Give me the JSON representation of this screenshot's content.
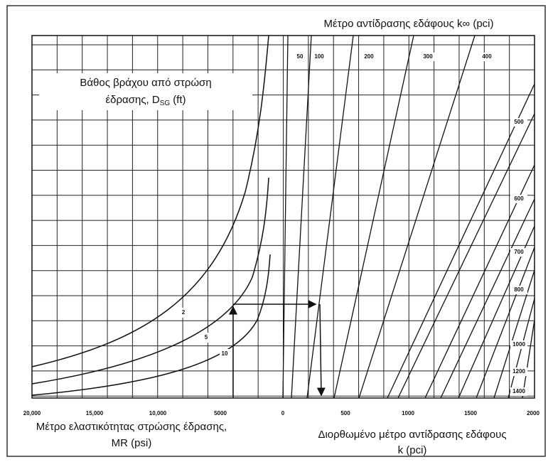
{
  "title": "Μέτρο αντίδρασης εδάφους k∞ (pci)",
  "depth_label": {
    "line1": "Βάθος βράχου από στρώση",
    "line2": "έδρασης, D",
    "subscript": "SG",
    "unit": "(ft)"
  },
  "top_scale": [
    "50",
    "100",
    "200",
    "300",
    "400"
  ],
  "right_scale": [
    "500",
    "600",
    "700",
    "800",
    "1000",
    "1200",
    "1400"
  ],
  "depth_curves": [
    "2",
    "5",
    "10"
  ],
  "bottom_scale": [
    "20,000",
    "15,000",
    "10,000",
    "5000",
    "0",
    "500",
    "1000",
    "1500",
    "2000"
  ],
  "left_axis_label": {
    "line1": "Μέτρο ελαστικότητας στρώσης έδρασης,",
    "line2": "MR (psi)"
  },
  "right_axis_label": {
    "line1": "Διορθωμένο μέτρο αντίδρασης εδάφους",
    "line2": "k (pci)"
  }
}
